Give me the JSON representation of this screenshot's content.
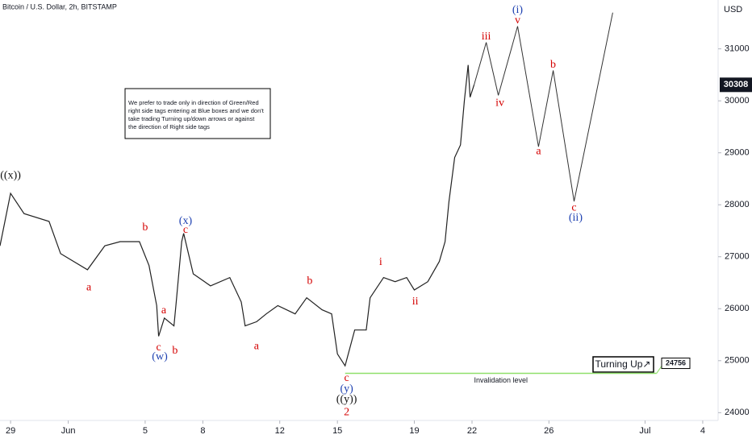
{
  "chart_data": {
    "type": "line",
    "title": "Bitcoin / U.S. Dollar, 2h, BITSTAMP",
    "y_axis_label": "USD",
    "xlim": [
      -0.55,
      36.8
    ],
    "ylim": [
      23850,
      31940
    ],
    "xticks": [
      {
        "value": 0,
        "label": "29"
      },
      {
        "value": 3,
        "label": "Jun"
      },
      {
        "value": 7,
        "label": "5"
      },
      {
        "value": 10,
        "label": "8"
      },
      {
        "value": 14,
        "label": "12"
      },
      {
        "value": 17,
        "label": "15"
      },
      {
        "value": 21,
        "label": "19"
      },
      {
        "value": 24,
        "label": "22"
      },
      {
        "value": 28,
        "label": "26"
      },
      {
        "value": 33,
        "label": "Jul"
      },
      {
        "value": 36,
        "label": "4"
      }
    ],
    "yticks": [
      24000,
      25000,
      26000,
      27000,
      28000,
      29000,
      30000,
      31000
    ],
    "grid": false,
    "price": {
      "color": "#222222",
      "x": [
        -0.55,
        0,
        0.7,
        2,
        2.6,
        4,
        4.9,
        5.7,
        6.7,
        7.2,
        7.6,
        7.7,
        8.0,
        8.5,
        8.6,
        8.9,
        9.0,
        9.5,
        10.4,
        11.4,
        12.0,
        12.2,
        12.8,
        13.3,
        13.9,
        14.8,
        15.4,
        16.2,
        16.7,
        17.0,
        17.4,
        17.9,
        18.5,
        18.7,
        19.4,
        20.0,
        20.6,
        21.0,
        21.7,
        22.3,
        22.6,
        22.8,
        23.1,
        23.4,
        23.6,
        23.8,
        23.9,
        24.11
      ],
      "values": [
        27210,
        28220,
        27830,
        27680,
        27060,
        26750,
        27210,
        27290,
        27290,
        26830,
        26060,
        25470,
        25820,
        25670,
        26060,
        27290,
        27450,
        26670,
        26440,
        26600,
        26130,
        25670,
        25750,
        25900,
        26060,
        25900,
        26210,
        25980,
        25900,
        25130,
        24900,
        25590,
        25590,
        26210,
        26600,
        26520,
        26600,
        26360,
        26520,
        26910,
        27290,
        28060,
        28910,
        29150,
        30000,
        30690,
        30070,
        30310
      ]
    },
    "projection": {
      "color": "#333333",
      "x": [
        24.11,
        24.74,
        25.37,
        26.37,
        27.46,
        28.22,
        29.31,
        31.32
      ],
      "values": [
        30310,
        31125,
        30105,
        31434,
        29116,
        30584,
        28065,
        31697
      ]
    },
    "last_price": {
      "value": 30308
    },
    "invalidation": {
      "label": "Invalidation level",
      "value": 24756,
      "x": [
        17.4,
        33.6
      ],
      "color": "#8fe06a"
    },
    "signal": {
      "label": "Turning Up↗"
    },
    "note": [
      "We prefer to trade only in direction of Green/Red",
      "right side tags entering at Blue boxes and we don't",
      "take trading Turning up/down arrows or against",
      "the direction of Right side tags"
    ],
    "annotations": [
      {
        "text": "((x))",
        "color": "#111111",
        "x": 0,
        "y": 28560
      },
      {
        "text": "a",
        "color": "#d40000",
        "x": 4.07,
        "y": 26400
      },
      {
        "text": "b",
        "color": "#d40000",
        "x": 7.0,
        "y": 27555
      },
      {
        "text": "a",
        "color": "#d40000",
        "x": 7.97,
        "y": 25960
      },
      {
        "text": "c",
        "color": "#d40000",
        "x": 7.7,
        "y": 25250
      },
      {
        "text": "(w)",
        "color": "#1c3fb0",
        "x": 7.76,
        "y": 25070
      },
      {
        "text": "b",
        "color": "#d40000",
        "x": 8.55,
        "y": 25190
      },
      {
        "text": "(x)",
        "color": "#1c3fb0",
        "x": 9.1,
        "y": 27680
      },
      {
        "text": "c",
        "color": "#d40000",
        "x": 9.1,
        "y": 27510
      },
      {
        "text": "a",
        "color": "#d40000",
        "x": 12.79,
        "y": 25270
      },
      {
        "text": "b",
        "color": "#d40000",
        "x": 15.56,
        "y": 26530
      },
      {
        "text": "c",
        "color": "#d40000",
        "x": 17.48,
        "y": 24660
      },
      {
        "text": "(y)",
        "color": "#1c3fb0",
        "x": 17.48,
        "y": 24450
      },
      {
        "text": "((y))",
        "color": "#111111",
        "x": 17.48,
        "y": 24250
      },
      {
        "text": "2",
        "color": "#d40000",
        "x": 17.48,
        "y": 24000
      },
      {
        "text": "i",
        "color": "#d40000",
        "x": 19.25,
        "y": 26890
      },
      {
        "text": "ii",
        "color": "#d40000",
        "x": 21.05,
        "y": 26130
      },
      {
        "text": "iii",
        "color": "#d40000",
        "x": 24.74,
        "y": 31230
      },
      {
        "text": "iv",
        "color": "#d40000",
        "x": 25.45,
        "y": 29950
      },
      {
        "text": "v",
        "color": "#d40000",
        "x": 26.37,
        "y": 31540
      },
      {
        "text": "(i)",
        "color": "#1c3fb0",
        "x": 26.37,
        "y": 31740
      },
      {
        "text": "a",
        "color": "#d40000",
        "x": 27.46,
        "y": 29020
      },
      {
        "text": "b",
        "color": "#d40000",
        "x": 28.22,
        "y": 30690
      },
      {
        "text": "c",
        "color": "#d40000",
        "x": 29.31,
        "y": 27940
      },
      {
        "text": "(ii)",
        "color": "#1c3fb0",
        "x": 29.39,
        "y": 27740
      }
    ]
  }
}
